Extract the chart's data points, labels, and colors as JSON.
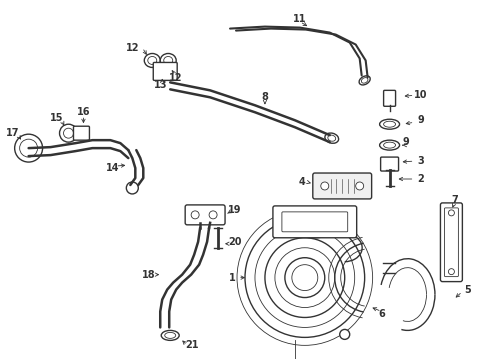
{
  "background_color": "#ffffff",
  "fig_width": 4.89,
  "fig_height": 3.6,
  "dpi": 100,
  "line_color": "#333333",
  "label_fontsize": 7.0
}
